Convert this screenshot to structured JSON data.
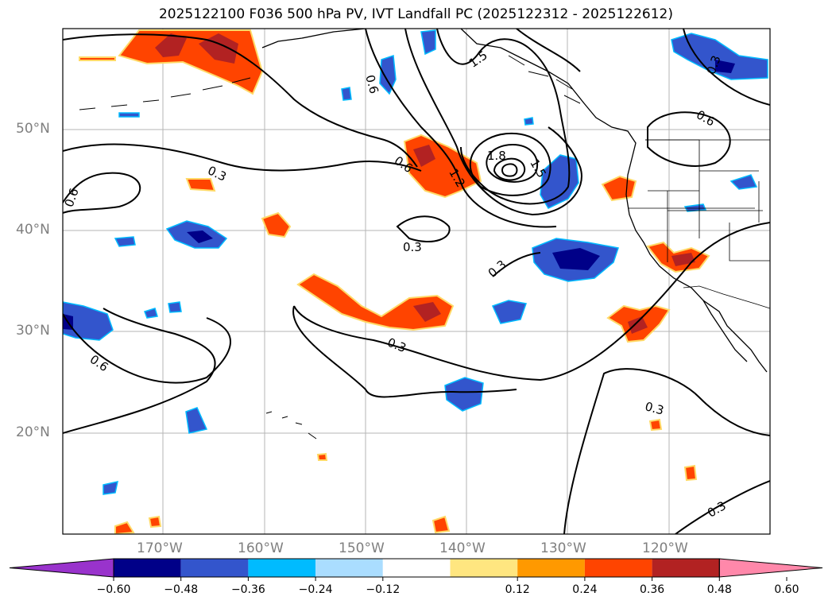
{
  "title": "2025122100 F036 500 hPa PV, IVT Landfall PC (2025122312 - 2025122612)",
  "lat_labels": [
    "50°N",
    "40°N",
    "30°N",
    "20°N"
  ],
  "lon_labels": [
    "170°W",
    "160°W",
    "150°W",
    "140°W",
    "130°W",
    "120°W"
  ],
  "contour_labels": [
    "1.5",
    "1.8",
    "1.5",
    "1.2",
    "0.6",
    "0.6",
    "0.6",
    "0.3",
    "0.3",
    "0.3",
    "0.3",
    "0.3",
    "0.6",
    "0.3",
    "0.3",
    "0.6"
  ],
  "colorbar": {
    "ticks": [
      "−0.60",
      "−0.48",
      "−0.36",
      "−0.24",
      "−0.12",
      "0.12",
      "0.24",
      "0.36",
      "0.48",
      "0.60"
    ],
    "colors": [
      "#9933cc",
      "#000088",
      "#3355cc",
      "#00bbff",
      "#aaddff",
      "#ffffff",
      "#ffe680",
      "#ff9900",
      "#ff4400",
      "#b22222",
      "#ff88aa"
    ]
  }
}
